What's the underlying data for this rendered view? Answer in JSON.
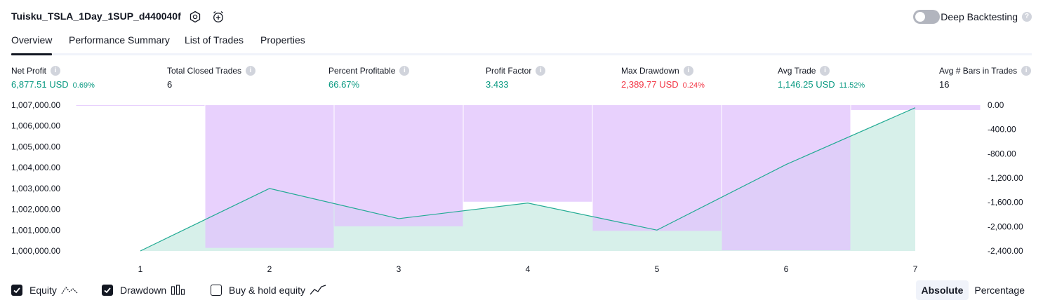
{
  "header": {
    "strategy_title": "Tuisku_TSLA_1Day_1SUP_d440040f",
    "deep_backtesting_label": "Deep Backtesting",
    "deep_backtesting_enabled": false,
    "help_glyph": "?"
  },
  "tabs": [
    {
      "label": "Overview",
      "active": true
    },
    {
      "label": "Performance Summary",
      "active": false
    },
    {
      "label": "List of Trades",
      "active": false
    },
    {
      "label": "Properties",
      "active": false
    }
  ],
  "metrics": [
    {
      "label": "Net Profit",
      "value": "6,877.51 USD",
      "percent": "0.69%",
      "tone": "pos"
    },
    {
      "label": "Total Closed Trades",
      "value": "6",
      "percent": "",
      "tone": "neutral"
    },
    {
      "label": "Percent Profitable",
      "value": "66.67%",
      "percent": "",
      "tone": "pos"
    },
    {
      "label": "Profit Factor",
      "value": "3.433",
      "percent": "",
      "tone": "pos"
    },
    {
      "label": "Max Drawdown",
      "value": "2,389.77 USD",
      "percent": "0.24%",
      "tone": "neg"
    },
    {
      "label": "Avg Trade",
      "value": "1,146.25 USD",
      "percent": "11.52%",
      "tone": "pos"
    },
    {
      "label": "Avg # Bars in Trades",
      "value": "16",
      "percent": "",
      "tone": "neutral"
    }
  ],
  "chart_data": {
    "type": "area",
    "x": [
      1,
      2,
      3,
      4,
      5,
      6,
      7
    ],
    "x_tick_labels": [
      "1",
      "2",
      "3",
      "4",
      "5",
      "6",
      "7"
    ],
    "left_axis": {
      "ticks": [
        "1,007,000.00",
        "1,006,000.00",
        "1,005,000.00",
        "1,004,000.00",
        "1,003,000.00",
        "1,002,000.00",
        "1,001,000.00",
        "1,000,000.00"
      ],
      "tick_values": [
        1007000,
        1006000,
        1005000,
        1004000,
        1003000,
        1002000,
        1001000,
        1000000
      ],
      "ylim": [
        1000000,
        1007000
      ]
    },
    "right_axis": {
      "ticks": [
        "0.00",
        "-400.00",
        "-800.00",
        "-1,200.00",
        "-1,600.00",
        "-2,000.00",
        "-2,400.00"
      ],
      "tick_values": [
        0,
        -400,
        -800,
        -1200,
        -1600,
        -2000,
        -2400
      ],
      "ylim": [
        -2400,
        0
      ]
    },
    "series": [
      {
        "name": "Equity",
        "kind": "area",
        "axis": "left",
        "values": [
          1000000,
          1003000,
          1001550,
          1002300,
          1001000,
          1004150,
          1006877.51
        ],
        "line_color": "#22ab94",
        "fill_color": "#c9ebe3"
      },
      {
        "name": "Drawdown",
        "kind": "bar",
        "axis": "right",
        "bar_x": [
          0.5,
          2,
          3,
          4,
          5,
          6,
          7
        ],
        "values": [
          0,
          -2350,
          -1995,
          -1590,
          -2070,
          -2389.77,
          -80
        ],
        "color": "#e1c4fc"
      }
    ],
    "grid": false
  },
  "legend": {
    "items": [
      {
        "label": "Equity",
        "checked": true,
        "icon": "equity-line-icon"
      },
      {
        "label": "Drawdown",
        "checked": true,
        "icon": "drawdown-bars-icon"
      },
      {
        "label": "Buy & hold equity",
        "checked": false,
        "icon": "buy-hold-line-icon"
      }
    ]
  },
  "mode_switch": {
    "options": [
      {
        "label": "Absolute",
        "active": true
      },
      {
        "label": "Percentage",
        "active": false
      }
    ]
  },
  "icons": {
    "settings": "settings-gear-icon",
    "alert": "alarm-clock-plus-icon",
    "info": "info-icon",
    "check": "checkmark-icon"
  },
  "colors": {
    "positive": "#089981",
    "negative": "#f23645",
    "equity_line": "#22ab94",
    "equity_fill": "#c9ebe3",
    "drawdown": "#e1c4fc",
    "text": "#131722"
  }
}
